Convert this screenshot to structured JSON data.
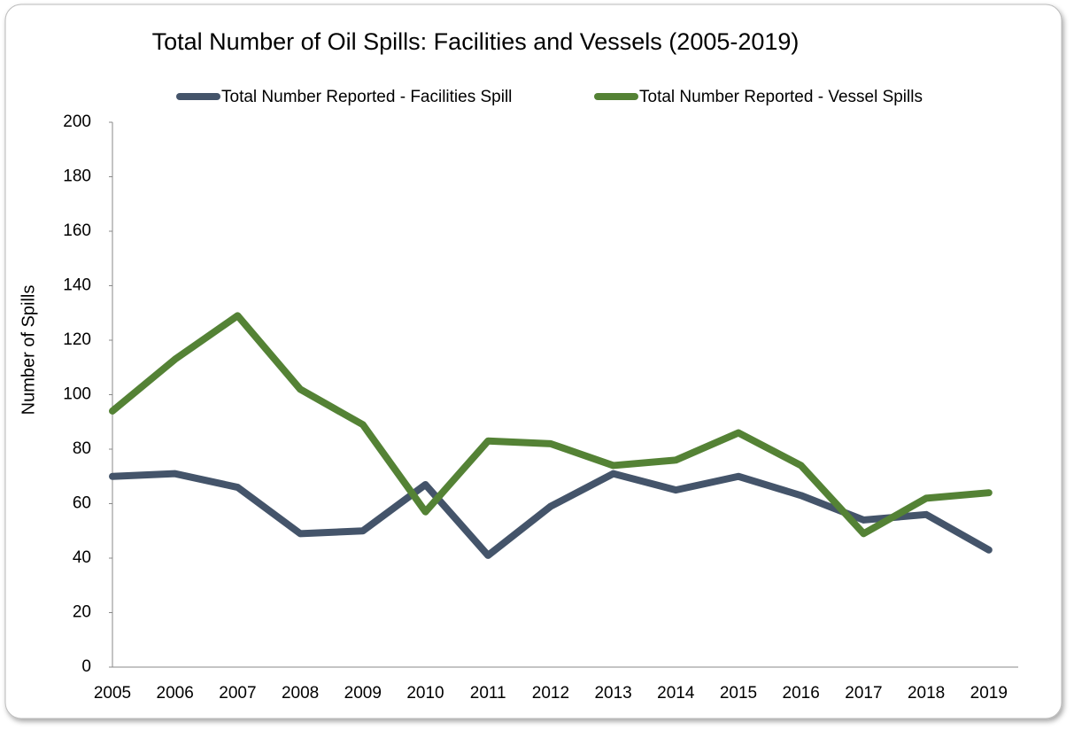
{
  "chart_data": {
    "type": "line",
    "title": "Total Number of Oil Spills: Facilities and Vessels (2005-2019)",
    "y_label": "Number of Spills",
    "categories": [
      "2005",
      "2006",
      "2007",
      "2008",
      "2009",
      "2010",
      "2011",
      "2012",
      "2013",
      "2014",
      "2015",
      "2016",
      "2017",
      "2018",
      "2019"
    ],
    "series": [
      {
        "name": "Total Number Reported - Facilities Spill",
        "color": "#44546a",
        "values": [
          70,
          71,
          66,
          49,
          50,
          67,
          41,
          59,
          71,
          65,
          70,
          63,
          54,
          56,
          43
        ]
      },
      {
        "name": "Total Number Reported - Vessel Spills",
        "color": "#548235",
        "values": [
          94,
          113,
          129,
          102,
          89,
          57,
          83,
          82,
          74,
          76,
          86,
          74,
          49,
          62,
          64
        ]
      }
    ],
    "ylim": [
      0,
      200
    ],
    "yticks": [
      0,
      20,
      40,
      60,
      80,
      100,
      120,
      140,
      160,
      180,
      200
    ],
    "legend": "top",
    "grid": false
  }
}
